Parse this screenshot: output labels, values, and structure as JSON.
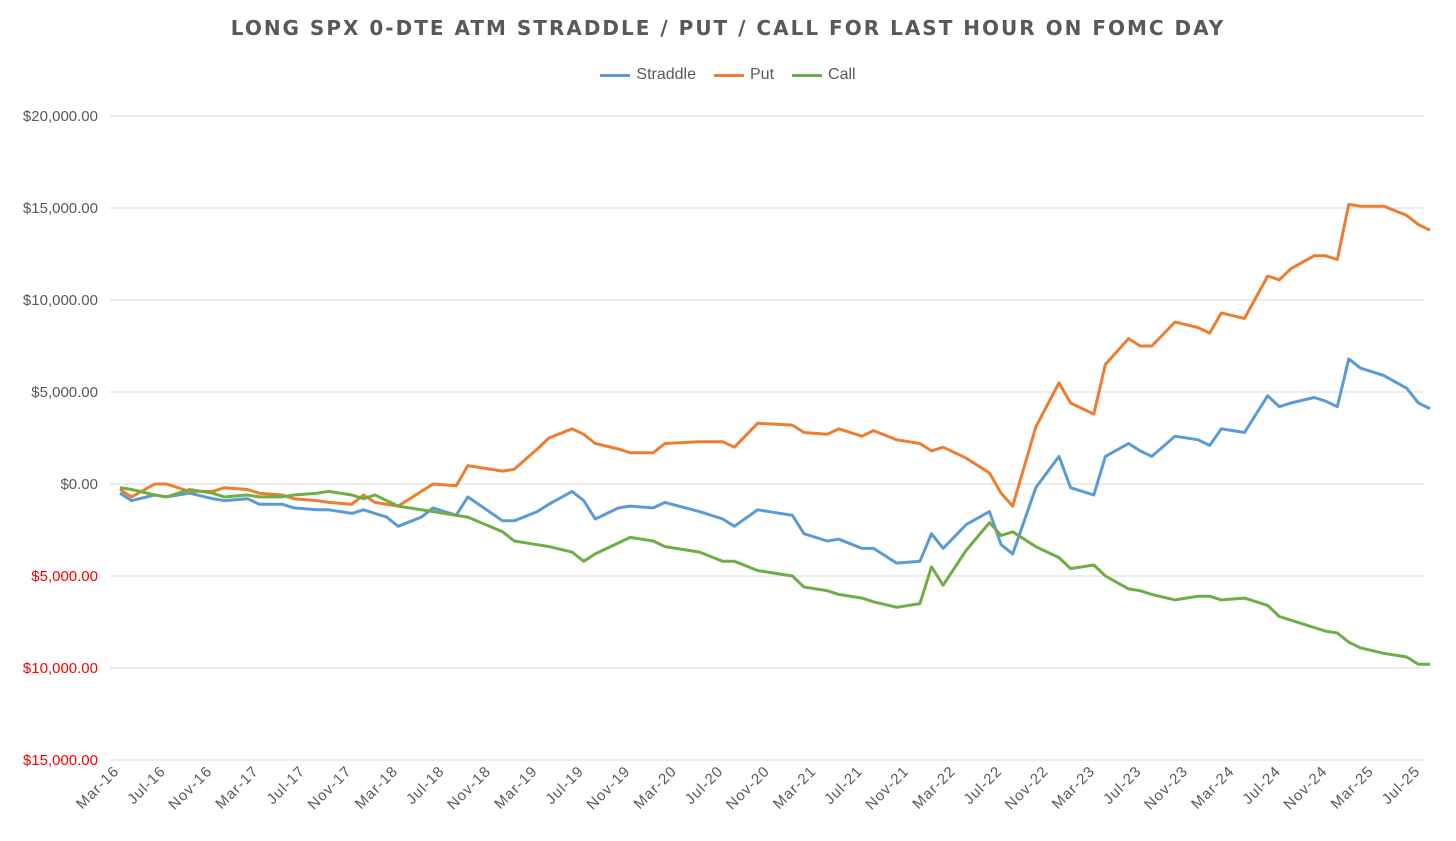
{
  "chart_data": {
    "type": "line",
    "title": "LONG SPX 0-DTE ATM STRADDLE / PUT / CALL FOR LAST HOUR ON FOMC DAY",
    "xlabel": "",
    "ylabel": "",
    "ylim": [
      -15000,
      20000
    ],
    "grid": true,
    "legend_position": "top",
    "y_ticks": [
      {
        "value": 20000,
        "label": "$20,000.00",
        "negative": false
      },
      {
        "value": 15000,
        "label": "$15,000.00",
        "negative": false
      },
      {
        "value": 10000,
        "label": "$10,000.00",
        "negative": false
      },
      {
        "value": 5000,
        "label": "$5,000.00",
        "negative": false
      },
      {
        "value": 0,
        "label": "$0.00",
        "negative": false
      },
      {
        "value": -5000,
        "label": "$5,000.00",
        "negative": true
      },
      {
        "value": -10000,
        "label": "$10,000.00",
        "negative": true
      },
      {
        "value": -15000,
        "label": "$15,000.00",
        "negative": true
      }
    ],
    "negative_tick_color": "#FF0000",
    "x_tick_labels": [
      "Mar-16",
      "Jul-16",
      "Nov-16",
      "Mar-17",
      "Jul-17",
      "Nov-17",
      "Mar-18",
      "Jul-18",
      "Nov-18",
      "Mar-19",
      "Jul-19",
      "Nov-19",
      "Mar-20",
      "Jul-20",
      "Nov-20",
      "Mar-21",
      "Jul-21",
      "Nov-21",
      "Mar-22",
      "Jul-22",
      "Nov-22",
      "Mar-23",
      "Jul-23",
      "Nov-23",
      "Mar-24",
      "Jul-24",
      "Nov-24",
      "Mar-25",
      "Jul-25"
    ],
    "x_range": [
      0,
      112
    ],
    "series": [
      {
        "name": "Straddle",
        "color": "#5B9BD5",
        "points": [
          [
            0,
            -500
          ],
          [
            1,
            -900
          ],
          [
            3,
            -600
          ],
          [
            4,
            -700
          ],
          [
            6,
            -500
          ],
          [
            8,
            -800
          ],
          [
            9,
            -900
          ],
          [
            11,
            -800
          ],
          [
            12,
            -1100
          ],
          [
            14,
            -1100
          ],
          [
            15,
            -1300
          ],
          [
            17,
            -1400
          ],
          [
            18,
            -1400
          ],
          [
            20,
            -1600
          ],
          [
            21,
            -1400
          ],
          [
            23,
            -1800
          ],
          [
            24,
            -2300
          ],
          [
            26,
            -1800
          ],
          [
            27,
            -1300
          ],
          [
            29,
            -1700
          ],
          [
            30,
            -700
          ],
          [
            33,
            -2000
          ],
          [
            34,
            -2000
          ],
          [
            36,
            -1500
          ],
          [
            37,
            -1100
          ],
          [
            39,
            -400
          ],
          [
            40,
            -900
          ],
          [
            41,
            -1900
          ],
          [
            43,
            -1300
          ],
          [
            44,
            -1200
          ],
          [
            46,
            -1300
          ],
          [
            47,
            -1000
          ],
          [
            50,
            -1500
          ],
          [
            52,
            -1900
          ],
          [
            53,
            -2300
          ],
          [
            55,
            -1400
          ],
          [
            58,
            -1700
          ],
          [
            59,
            -2700
          ],
          [
            61,
            -3100
          ],
          [
            62,
            -3000
          ],
          [
            64,
            -3500
          ],
          [
            65,
            -3500
          ],
          [
            67,
            -4300
          ],
          [
            69,
            -4200
          ],
          [
            70,
            -2700
          ],
          [
            71,
            -3500
          ],
          [
            73,
            -2200
          ],
          [
            75,
            -1500
          ],
          [
            76,
            -3300
          ],
          [
            77,
            -3800
          ],
          [
            79,
            -200
          ],
          [
            81,
            1500
          ],
          [
            82,
            -200
          ],
          [
            84,
            -600
          ],
          [
            85,
            1500
          ],
          [
            87,
            2200
          ],
          [
            88,
            1800
          ],
          [
            89,
            1500
          ],
          [
            91,
            2600
          ],
          [
            93,
            2400
          ],
          [
            94,
            2100
          ],
          [
            95,
            3000
          ],
          [
            96,
            2900
          ],
          [
            97,
            2800
          ],
          [
            99,
            4800
          ],
          [
            100,
            4200
          ],
          [
            101,
            4400
          ],
          [
            103,
            4700
          ],
          [
            104,
            4500
          ],
          [
            105,
            4200
          ],
          [
            106,
            6800
          ],
          [
            107,
            6300
          ],
          [
            109,
            5900
          ],
          [
            111,
            5200
          ],
          [
            112,
            4400
          ],
          [
            113,
            4100
          ]
        ]
      },
      {
        "name": "Put",
        "color": "#ED7D31",
        "points": [
          [
            0,
            -300
          ],
          [
            1,
            -700
          ],
          [
            3,
            0
          ],
          [
            4,
            0
          ],
          [
            6,
            -400
          ],
          [
            7,
            -400
          ],
          [
            8,
            -400
          ],
          [
            9,
            -200
          ],
          [
            11,
            -300
          ],
          [
            12,
            -500
          ],
          [
            14,
            -600
          ],
          [
            15,
            -800
          ],
          [
            17,
            -900
          ],
          [
            18,
            -1000
          ],
          [
            20,
            -1100
          ],
          [
            21,
            -600
          ],
          [
            22,
            -1000
          ],
          [
            24,
            -1200
          ],
          [
            27,
            0
          ],
          [
            29,
            -100
          ],
          [
            30,
            1000
          ],
          [
            33,
            700
          ],
          [
            34,
            800
          ],
          [
            36,
            1900
          ],
          [
            37,
            2500
          ],
          [
            39,
            3000
          ],
          [
            40,
            2700
          ],
          [
            41,
            2200
          ],
          [
            43,
            1900
          ],
          [
            44,
            1700
          ],
          [
            46,
            1700
          ],
          [
            47,
            2200
          ],
          [
            50,
            2300
          ],
          [
            52,
            2300
          ],
          [
            53,
            2000
          ],
          [
            55,
            3300
          ],
          [
            58,
            3200
          ],
          [
            59,
            2800
          ],
          [
            61,
            2700
          ],
          [
            62,
            3000
          ],
          [
            64,
            2600
          ],
          [
            65,
            2900
          ],
          [
            67,
            2400
          ],
          [
            69,
            2200
          ],
          [
            70,
            1800
          ],
          [
            71,
            2000
          ],
          [
            73,
            1400
          ],
          [
            75,
            600
          ],
          [
            76,
            -500
          ],
          [
            77,
            -1200
          ],
          [
            79,
            3100
          ],
          [
            81,
            5500
          ],
          [
            82,
            4400
          ],
          [
            84,
            3800
          ],
          [
            85,
            6500
          ],
          [
            87,
            7900
          ],
          [
            88,
            7500
          ],
          [
            89,
            7500
          ],
          [
            91,
            8800
          ],
          [
            93,
            8500
          ],
          [
            94,
            8200
          ],
          [
            95,
            9300
          ],
          [
            97,
            9000
          ],
          [
            99,
            11300
          ],
          [
            100,
            11100
          ],
          [
            101,
            11700
          ],
          [
            103,
            12400
          ],
          [
            104,
            12400
          ],
          [
            105,
            12200
          ],
          [
            106,
            15200
          ],
          [
            107,
            15100
          ],
          [
            109,
            15100
          ],
          [
            111,
            14600
          ],
          [
            112,
            14100
          ],
          [
            113,
            13800
          ]
        ]
      },
      {
        "name": "Call",
        "color": "#70AD47",
        "points": [
          [
            0,
            -200
          ],
          [
            1,
            -300
          ],
          [
            3,
            -600
          ],
          [
            4,
            -700
          ],
          [
            6,
            -300
          ],
          [
            7,
            -400
          ],
          [
            8,
            -500
          ],
          [
            9,
            -700
          ],
          [
            11,
            -600
          ],
          [
            12,
            -700
          ],
          [
            14,
            -700
          ],
          [
            15,
            -600
          ],
          [
            17,
            -500
          ],
          [
            18,
            -400
          ],
          [
            20,
            -600
          ],
          [
            21,
            -800
          ],
          [
            22,
            -600
          ],
          [
            24,
            -1200
          ],
          [
            27,
            -1500
          ],
          [
            29,
            -1700
          ],
          [
            30,
            -1800
          ],
          [
            33,
            -2600
          ],
          [
            34,
            -3100
          ],
          [
            36,
            -3300
          ],
          [
            37,
            -3400
          ],
          [
            39,
            -3700
          ],
          [
            40,
            -4200
          ],
          [
            41,
            -3800
          ],
          [
            43,
            -3200
          ],
          [
            44,
            -2900
          ],
          [
            46,
            -3100
          ],
          [
            47,
            -3400
          ],
          [
            50,
            -3700
          ],
          [
            52,
            -4200
          ],
          [
            53,
            -4200
          ],
          [
            55,
            -4700
          ],
          [
            58,
            -5000
          ],
          [
            59,
            -5600
          ],
          [
            61,
            -5800
          ],
          [
            62,
            -6000
          ],
          [
            64,
            -6200
          ],
          [
            65,
            -6400
          ],
          [
            67,
            -6700
          ],
          [
            69,
            -6500
          ],
          [
            70,
            -4500
          ],
          [
            71,
            -5500
          ],
          [
            73,
            -3600
          ],
          [
            75,
            -2100
          ],
          [
            76,
            -2800
          ],
          [
            77,
            -2600
          ],
          [
            79,
            -3400
          ],
          [
            81,
            -4000
          ],
          [
            82,
            -4600
          ],
          [
            84,
            -4400
          ],
          [
            85,
            -5000
          ],
          [
            87,
            -5700
          ],
          [
            88,
            -5800
          ],
          [
            89,
            -6000
          ],
          [
            91,
            -6300
          ],
          [
            93,
            -6100
          ],
          [
            94,
            -6100
          ],
          [
            95,
            -6300
          ],
          [
            97,
            -6200
          ],
          [
            99,
            -6600
          ],
          [
            100,
            -7200
          ],
          [
            101,
            -7400
          ],
          [
            103,
            -7800
          ],
          [
            104,
            -8000
          ],
          [
            105,
            -8100
          ],
          [
            106,
            -8600
          ],
          [
            107,
            -8900
          ],
          [
            109,
            -9200
          ],
          [
            111,
            -9400
          ],
          [
            112,
            -9800
          ],
          [
            113,
            -9800
          ]
        ]
      }
    ]
  }
}
